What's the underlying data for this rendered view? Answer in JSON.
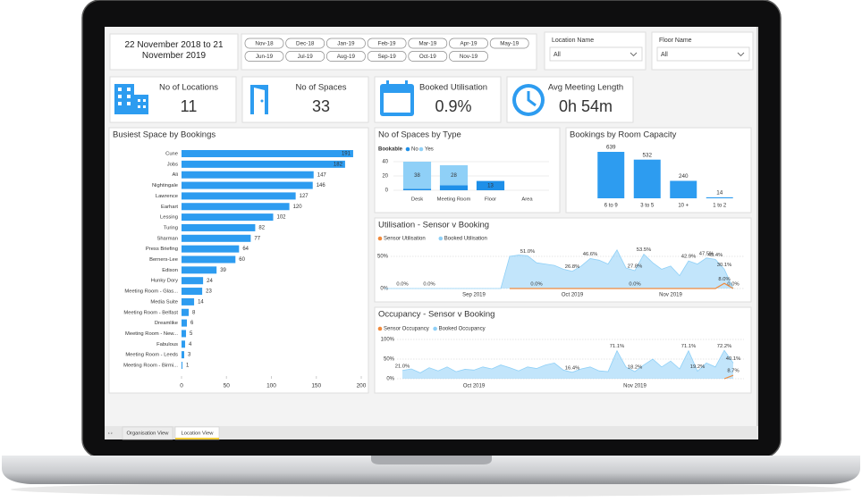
{
  "date_range": "22 November 2018 to 21 November 2019",
  "months": [
    "Nov-18",
    "Dec-18",
    "Jan-19",
    "Feb-19",
    "Mar-19",
    "Apr-19",
    "May-19",
    "Jun-19",
    "Jul-19",
    "Aug-19",
    "Sep-19",
    "Oct-19",
    "Nov-19"
  ],
  "filters": [
    {
      "label": "Location Name",
      "value": "All"
    },
    {
      "label": "Floor Name",
      "value": "All"
    }
  ],
  "cards": [
    {
      "label": "No of Locations",
      "value": "11"
    },
    {
      "label": "No of Spaces",
      "value": "33"
    },
    {
      "label": "Booked Utilisation",
      "value": "0.9%"
    },
    {
      "label": "Avg Meeting Length",
      "value": "0h 54m"
    }
  ],
  "tabs": [
    "Organisation View",
    "Location View"
  ],
  "chart_data": [
    {
      "type": "bar",
      "orientation": "horizontal",
      "title": "Busiest Space by Bookings",
      "categories": [
        "Cune",
        "Jobs",
        "Ali",
        "Nightingale",
        "Lawrence",
        "Earhart",
        "Lessing",
        "Turing",
        "Sharman",
        "Press Briefing",
        "Berners-Lee",
        "Edison",
        "Hunky Dory",
        "Meeting Room - Glas...",
        "Media Suite",
        "Meeting Room - Belfast",
        "Dreamlike",
        "Meeting Room - New...",
        "Fabulous",
        "Meeting Room - Leeds",
        "Meeting Room - Birmi..."
      ],
      "values": [
        191,
        182,
        147,
        146,
        127,
        120,
        102,
        82,
        77,
        64,
        60,
        39,
        24,
        23,
        14,
        8,
        6,
        5,
        4,
        3,
        1
      ],
      "color": "#2d9cf0",
      "xlim": [
        0,
        200
      ],
      "xticks": [
        0,
        50,
        100,
        150,
        200
      ]
    },
    {
      "type": "bar",
      "stacked": true,
      "title": "No of Spaces by Type",
      "legend_title": "Bookable",
      "categories": [
        "Desk",
        "Meeting Room",
        "Floor",
        "Area"
      ],
      "series": [
        {
          "name": "No",
          "color": "#1e8fe8",
          "values": [
            2,
            7,
            13,
            0
          ],
          "value_labels": [
            null,
            null,
            "13",
            null
          ]
        },
        {
          "name": "Yes",
          "color": "#8fd0f7",
          "values": [
            38,
            28,
            0,
            0
          ],
          "value_labels": [
            "38",
            "28",
            null,
            null
          ]
        }
      ],
      "ylim": [
        0,
        45
      ],
      "yticks": [
        0,
        20,
        40
      ],
      "grid": true
    },
    {
      "type": "bar",
      "title": "Bookings by Room Capacity",
      "categories": [
        "6 to 9",
        "3 to 5",
        "10 +",
        "1 to 2"
      ],
      "values": [
        639,
        532,
        240,
        14
      ],
      "color": "#2d9cf0"
    },
    {
      "type": "area",
      "title": "Utilisation - Sensor v Booking",
      "categories": [
        null,
        null,
        null,
        null,
        null,
        null,
        null,
        null,
        null,
        null,
        "Sep 2019",
        null,
        null,
        null,
        null,
        null,
        null,
        null,
        null,
        null,
        null,
        "Oct 2019",
        null,
        null,
        null,
        null,
        null,
        null,
        null,
        null,
        null,
        null,
        "Nov 2019",
        null,
        null,
        null,
        null,
        null,
        null,
        null
      ],
      "series": [
        {
          "name": "Sensor Utilisation",
          "color": "#f08a3c",
          "area": false,
          "values": [
            null,
            null,
            null,
            null,
            null,
            null,
            null,
            null,
            null,
            null,
            null,
            null,
            null,
            null,
            0,
            0,
            0,
            0,
            0,
            0,
            0,
            0,
            0,
            0,
            0,
            0,
            0,
            0,
            0,
            0,
            0,
            0,
            0,
            0,
            0,
            0,
            0,
            0,
            8,
            0
          ],
          "value_labels": [
            null,
            null,
            null,
            null,
            null,
            null,
            null,
            null,
            null,
            null,
            null,
            null,
            null,
            null,
            null,
            null,
            null,
            "0.0%",
            null,
            null,
            null,
            null,
            null,
            null,
            null,
            null,
            null,
            null,
            "0.0%",
            null,
            null,
            null,
            null,
            null,
            null,
            null,
            null,
            null,
            "8.0%",
            null
          ]
        },
        {
          "name": "Booked Utilisation",
          "color": "#8fd0f7",
          "area": true,
          "values": [
            0,
            0,
            0,
            0,
            0,
            0,
            0,
            0,
            0,
            0,
            0,
            0,
            0,
            0,
            50,
            52,
            51,
            40,
            38,
            36,
            30,
            26.8,
            35,
            46.6,
            44,
            38,
            60,
            32,
            27.8,
            53.5,
            40,
            30,
            35,
            20,
            42.9,
            38,
            47.5,
            45.4,
            30.1,
            0
          ],
          "value_labels": [
            null,
            null,
            "0.0%",
            null,
            null,
            "0.0%",
            null,
            null,
            null,
            null,
            null,
            null,
            null,
            null,
            null,
            null,
            "51.0%",
            null,
            null,
            null,
            null,
            "26.8%",
            null,
            "46.6%",
            null,
            null,
            null,
            null,
            "27.8%",
            "53.5%",
            null,
            null,
            null,
            null,
            "42.9%",
            null,
            "47.5%",
            "45.4%",
            "30.1%",
            "0.0%"
          ]
        }
      ],
      "ylim": [
        0,
        60
      ],
      "yticks": [
        {
          "value": 0,
          "label": "0%"
        },
        {
          "value": 50,
          "label": "50%"
        }
      ],
      "grid": true
    },
    {
      "type": "area",
      "title": "Occupancy - Sensor v Booking",
      "categories": [
        null,
        null,
        null,
        null,
        null,
        null,
        null,
        null,
        "Oct 2019",
        null,
        null,
        null,
        null,
        null,
        null,
        null,
        null,
        null,
        null,
        null,
        null,
        null,
        null,
        null,
        null,
        null,
        "Nov 2019",
        null,
        null,
        null,
        null,
        null,
        null,
        null,
        null,
        null,
        null,
        null
      ],
      "series": [
        {
          "name": "Sensor Occupancy",
          "color": "#f08a3c",
          "area": false,
          "values": [
            null,
            null,
            null,
            null,
            null,
            null,
            null,
            null,
            null,
            null,
            null,
            null,
            null,
            null,
            null,
            null,
            null,
            null,
            null,
            null,
            null,
            null,
            null,
            null,
            null,
            null,
            null,
            null,
            null,
            null,
            null,
            null,
            null,
            null,
            null,
            null,
            0,
            8.7
          ],
          "value_labels": [
            null,
            null,
            null,
            null,
            null,
            null,
            null,
            null,
            null,
            null,
            null,
            null,
            null,
            null,
            null,
            null,
            null,
            null,
            null,
            null,
            null,
            null,
            null,
            null,
            null,
            null,
            null,
            null,
            null,
            null,
            null,
            null,
            null,
            null,
            null,
            null,
            null,
            "8.7%"
          ]
        },
        {
          "name": "Booked Occupancy",
          "color": "#8fd0f7",
          "area": true,
          "values": [
            21,
            25,
            15,
            28,
            20,
            30,
            18,
            24,
            22,
            30,
            25,
            35,
            28,
            20,
            30,
            26,
            35,
            40,
            22,
            16.4,
            25,
            30,
            20,
            18,
            71.1,
            30,
            18.2,
            35,
            50,
            30,
            45,
            25,
            71.1,
            19.2,
            40,
            30,
            72.2,
            40.1
          ],
          "value_labels": [
            "21.0%",
            null,
            null,
            null,
            null,
            null,
            null,
            null,
            null,
            null,
            null,
            null,
            null,
            null,
            null,
            null,
            null,
            null,
            null,
            "16.4%",
            null,
            null,
            null,
            null,
            "71.1%",
            null,
            "18.2%",
            null,
            null,
            null,
            null,
            null,
            "71.1%",
            "19.2%",
            null,
            null,
            "72.2%",
            "40.1%"
          ]
        }
      ],
      "ylim": [
        0,
        110
      ],
      "yticks": [
        {
          "value": 0,
          "label": "0%"
        },
        {
          "value": 50,
          "label": "50%"
        },
        {
          "value": 100,
          "label": "100%"
        }
      ],
      "grid": true
    }
  ]
}
